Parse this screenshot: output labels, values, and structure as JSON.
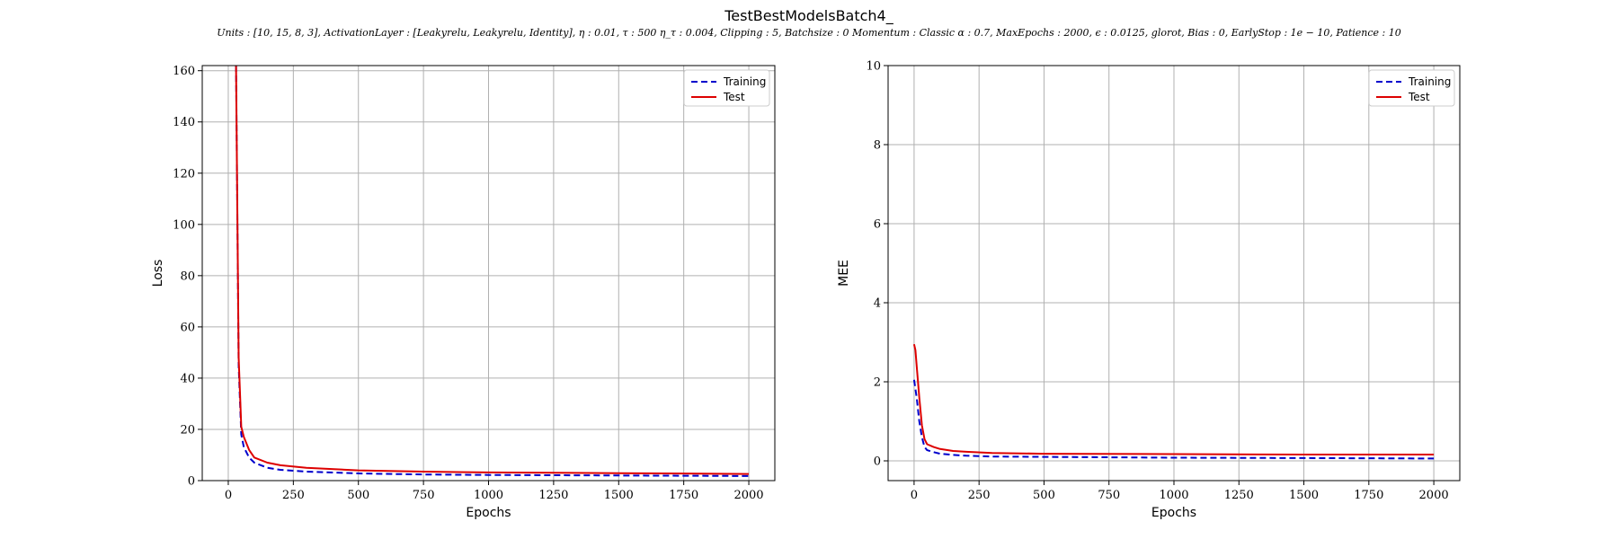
{
  "figure": {
    "title": "TestBestModelsBatch4_",
    "subtitle": "Units : [10, 15, 8, 3], ActivationLayer : [Leakyrelu, Leakyrelu, Identity], η : 0.01, τ : 500 η_τ : 0.004, Clipping : 5, Batchsize : 0 Momentum : Classic α : 0.7, MaxEpochs : 2000, ϵ : 0.0125, glorot, Bias : 0, EarlyStop : 1e − 10, Patience : 10"
  },
  "colors": {
    "training": "#0000cc",
    "test": "#dd0000",
    "grid": "#b0b0b0"
  },
  "chart_data": [
    {
      "type": "line",
      "xlabel": "Epochs",
      "ylabel": "Loss",
      "xlim": [
        -100,
        2100
      ],
      "ylim": [
        0,
        162
      ],
      "xticks": [
        0,
        250,
        500,
        750,
        1000,
        1250,
        1500,
        1750,
        2000
      ],
      "yticks": [
        0,
        20,
        40,
        60,
        80,
        100,
        120,
        140,
        160
      ],
      "grid": true,
      "legend": "top-right",
      "series": [
        {
          "name": "Training",
          "style": "dashed",
          "x": [
            30,
            40,
            50,
            60,
            80,
            100,
            150,
            200,
            300,
            500,
            750,
            1000,
            1500,
            2000
          ],
          "y": [
            162,
            45,
            18,
            13,
            9,
            7,
            5,
            4.2,
            3.5,
            2.8,
            2.4,
            2.2,
            2.0,
            1.8
          ]
        },
        {
          "name": "Test",
          "style": "solid",
          "x": [
            30,
            40,
            50,
            60,
            80,
            100,
            150,
            200,
            300,
            500,
            750,
            1000,
            1500,
            2000
          ],
          "y": [
            162,
            48,
            21,
            17,
            12,
            9,
            7,
            6,
            5,
            4,
            3.5,
            3.2,
            2.9,
            2.6
          ]
        }
      ]
    },
    {
      "type": "line",
      "xlabel": "Epochs",
      "ylabel": "MEE",
      "xlim": [
        -100,
        2100
      ],
      "ylim": [
        -0.5,
        10
      ],
      "xticks": [
        0,
        250,
        500,
        750,
        1000,
        1250,
        1500,
        1750,
        2000
      ],
      "yticks": [
        0,
        2,
        4,
        6,
        8,
        10
      ],
      "grid": true,
      "legend": "top-right",
      "series": [
        {
          "name": "Training",
          "style": "dashed",
          "x": [
            0,
            10,
            20,
            30,
            40,
            50,
            75,
            100,
            150,
            200,
            300,
            500,
            1000,
            1500,
            2000
          ],
          "y": [
            2.05,
            1.6,
            1.0,
            0.6,
            0.35,
            0.27,
            0.22,
            0.18,
            0.15,
            0.13,
            0.11,
            0.1,
            0.08,
            0.07,
            0.06
          ]
        },
        {
          "name": "Test",
          "style": "solid",
          "x": [
            0,
            5,
            10,
            20,
            30,
            40,
            50,
            75,
            100,
            150,
            200,
            300,
            500,
            1000,
            1500,
            2000
          ],
          "y": [
            2.95,
            2.8,
            2.4,
            1.6,
            0.9,
            0.55,
            0.42,
            0.35,
            0.3,
            0.25,
            0.23,
            0.2,
            0.18,
            0.17,
            0.16,
            0.16
          ]
        }
      ]
    }
  ]
}
